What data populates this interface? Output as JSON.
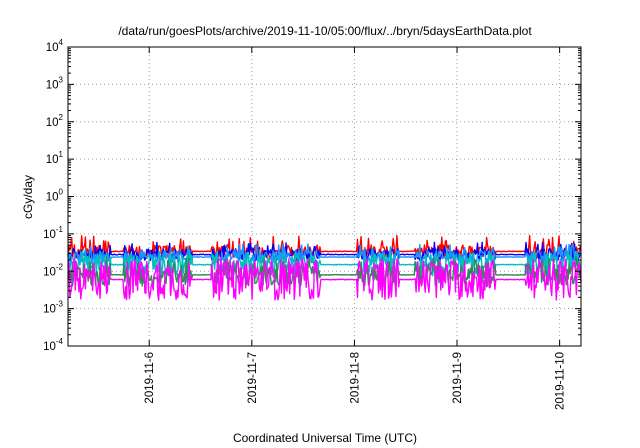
{
  "chart_data": {
    "type": "line",
    "title": "/data/run/goesPlots/archive/2019-11-10/05:00/flux/../bryn/5daysEarthData.plot",
    "xlabel": "Coordinated Universal Time (UTC)",
    "ylabel": "cGy/day",
    "y_scale": "log",
    "ylim": [
      0.0001,
      10000
    ],
    "xlim": [
      "2019-11-05 05:00",
      "2019-11-10 05:00"
    ],
    "x_ticks": [
      "2019-11-6",
      "2019-11-7",
      "2019-11-8",
      "2019-11-9",
      "2019-11-10"
    ],
    "y_ticks": [
      {
        "base": "10",
        "exp": "4"
      },
      {
        "base": "10",
        "exp": "3"
      },
      {
        "base": "10",
        "exp": "2"
      },
      {
        "base": "10",
        "exp": "1"
      },
      {
        "base": "10",
        "exp": "0"
      },
      {
        "base": "10",
        "exp": "-1"
      },
      {
        "base": "10",
        "exp": "-2"
      },
      {
        "base": "10",
        "exp": "-3"
      },
      {
        "base": "10",
        "exp": "-4"
      }
    ],
    "grid": true,
    "legend": "none",
    "gaps": [
      {
        "start": "2019-11-05 15:00",
        "end": "2019-11-05 18:00"
      },
      {
        "start": "2019-11-06 10:00",
        "end": "2019-11-06 14:30"
      },
      {
        "start": "2019-11-07 16:00",
        "end": "2019-11-08 00:30"
      },
      {
        "start": "2019-11-08 10:30",
        "end": "2019-11-08 14:00"
      },
      {
        "start": "2019-11-09 09:00",
        "end": "2019-11-09 16:00"
      }
    ],
    "series": [
      {
        "color": "#ff0000",
        "base": 0.034,
        "spread": 0.18,
        "spike": 0.075
      },
      {
        "color": "#0000ff",
        "base": 0.028,
        "spread": 0.16,
        "spike": 0.05
      },
      {
        "color": "#1e90ff",
        "base": 0.024,
        "spread": 0.18,
        "spike": 0.045
      },
      {
        "color": "#00bfbf",
        "base": 0.015,
        "spread": 0.3,
        "spike": 0.03
      },
      {
        "color": "#2e8b57",
        "base": 0.008,
        "spread": 0.3,
        "spike": 0.02
      },
      {
        "color": "#ff00ff",
        "base": 0.006,
        "spread": 0.55,
        "spike": 0.018
      }
    ]
  }
}
